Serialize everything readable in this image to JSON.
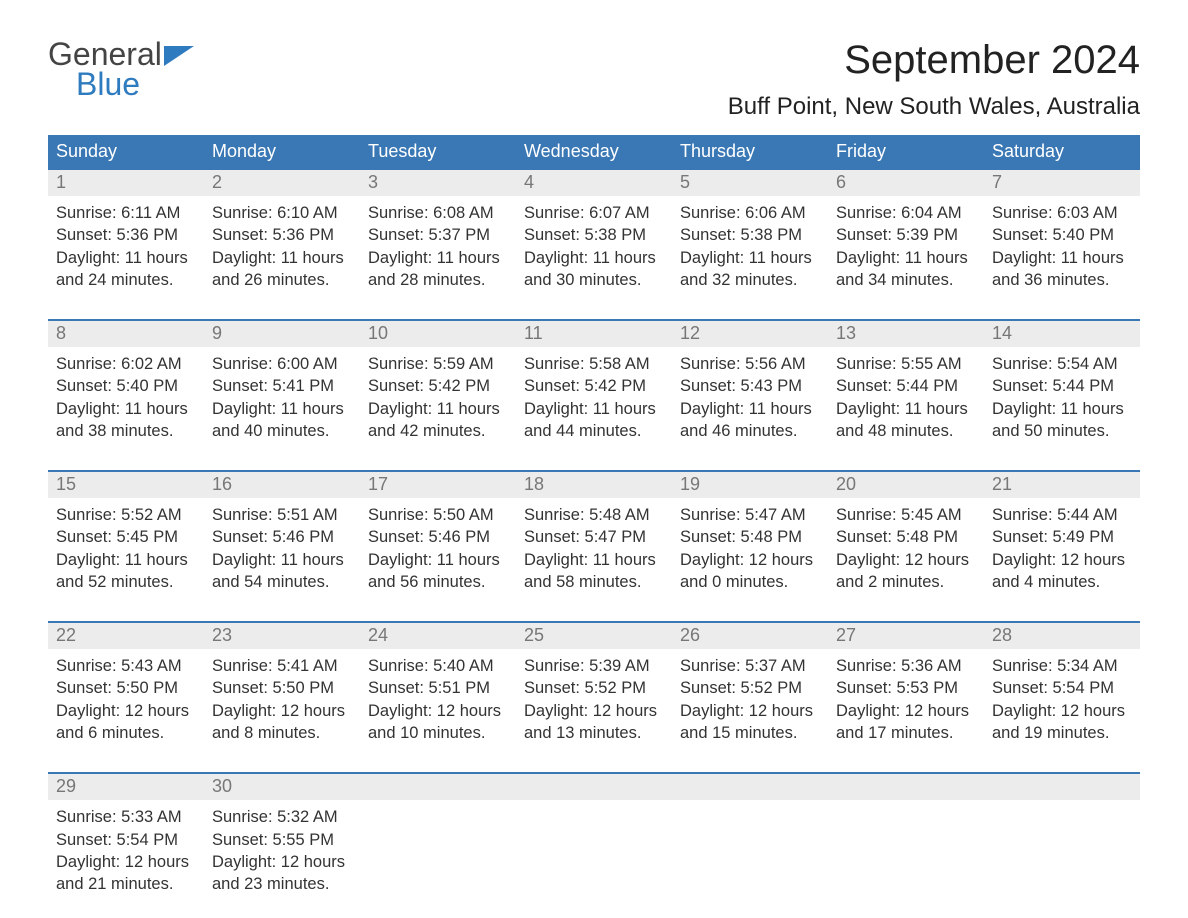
{
  "logo": {
    "line1": "General",
    "line2": "Blue"
  },
  "title": "September 2024",
  "location": "Buff Point, New South Wales, Australia",
  "colors": {
    "header_bg": "#3a78b5",
    "header_text": "#ffffff",
    "daynum_bg": "#ececec",
    "daynum_text": "#777777",
    "body_text": "#333333",
    "accent_blue": "#2f7bbf"
  },
  "weekdays": [
    "Sunday",
    "Monday",
    "Tuesday",
    "Wednesday",
    "Thursday",
    "Friday",
    "Saturday"
  ],
  "weeks": [
    [
      {
        "n": "1",
        "sunrise": "6:11 AM",
        "sunset": "5:36 PM",
        "daylight": "11 hours and 24 minutes."
      },
      {
        "n": "2",
        "sunrise": "6:10 AM",
        "sunset": "5:36 PM",
        "daylight": "11 hours and 26 minutes."
      },
      {
        "n": "3",
        "sunrise": "6:08 AM",
        "sunset": "5:37 PM",
        "daylight": "11 hours and 28 minutes."
      },
      {
        "n": "4",
        "sunrise": "6:07 AM",
        "sunset": "5:38 PM",
        "daylight": "11 hours and 30 minutes."
      },
      {
        "n": "5",
        "sunrise": "6:06 AM",
        "sunset": "5:38 PM",
        "daylight": "11 hours and 32 minutes."
      },
      {
        "n": "6",
        "sunrise": "6:04 AM",
        "sunset": "5:39 PM",
        "daylight": "11 hours and 34 minutes."
      },
      {
        "n": "7",
        "sunrise": "6:03 AM",
        "sunset": "5:40 PM",
        "daylight": "11 hours and 36 minutes."
      }
    ],
    [
      {
        "n": "8",
        "sunrise": "6:02 AM",
        "sunset": "5:40 PM",
        "daylight": "11 hours and 38 minutes."
      },
      {
        "n": "9",
        "sunrise": "6:00 AM",
        "sunset": "5:41 PM",
        "daylight": "11 hours and 40 minutes."
      },
      {
        "n": "10",
        "sunrise": "5:59 AM",
        "sunset": "5:42 PM",
        "daylight": "11 hours and 42 minutes."
      },
      {
        "n": "11",
        "sunrise": "5:58 AM",
        "sunset": "5:42 PM",
        "daylight": "11 hours and 44 minutes."
      },
      {
        "n": "12",
        "sunrise": "5:56 AM",
        "sunset": "5:43 PM",
        "daylight": "11 hours and 46 minutes."
      },
      {
        "n": "13",
        "sunrise": "5:55 AM",
        "sunset": "5:44 PM",
        "daylight": "11 hours and 48 minutes."
      },
      {
        "n": "14",
        "sunrise": "5:54 AM",
        "sunset": "5:44 PM",
        "daylight": "11 hours and 50 minutes."
      }
    ],
    [
      {
        "n": "15",
        "sunrise": "5:52 AM",
        "sunset": "5:45 PM",
        "daylight": "11 hours and 52 minutes."
      },
      {
        "n": "16",
        "sunrise": "5:51 AM",
        "sunset": "5:46 PM",
        "daylight": "11 hours and 54 minutes."
      },
      {
        "n": "17",
        "sunrise": "5:50 AM",
        "sunset": "5:46 PM",
        "daylight": "11 hours and 56 minutes."
      },
      {
        "n": "18",
        "sunrise": "5:48 AM",
        "sunset": "5:47 PM",
        "daylight": "11 hours and 58 minutes."
      },
      {
        "n": "19",
        "sunrise": "5:47 AM",
        "sunset": "5:48 PM",
        "daylight": "12 hours and 0 minutes."
      },
      {
        "n": "20",
        "sunrise": "5:45 AM",
        "sunset": "5:48 PM",
        "daylight": "12 hours and 2 minutes."
      },
      {
        "n": "21",
        "sunrise": "5:44 AM",
        "sunset": "5:49 PM",
        "daylight": "12 hours and 4 minutes."
      }
    ],
    [
      {
        "n": "22",
        "sunrise": "5:43 AM",
        "sunset": "5:50 PM",
        "daylight": "12 hours and 6 minutes."
      },
      {
        "n": "23",
        "sunrise": "5:41 AM",
        "sunset": "5:50 PM",
        "daylight": "12 hours and 8 minutes."
      },
      {
        "n": "24",
        "sunrise": "5:40 AM",
        "sunset": "5:51 PM",
        "daylight": "12 hours and 10 minutes."
      },
      {
        "n": "25",
        "sunrise": "5:39 AM",
        "sunset": "5:52 PM",
        "daylight": "12 hours and 13 minutes."
      },
      {
        "n": "26",
        "sunrise": "5:37 AM",
        "sunset": "5:52 PM",
        "daylight": "12 hours and 15 minutes."
      },
      {
        "n": "27",
        "sunrise": "5:36 AM",
        "sunset": "5:53 PM",
        "daylight": "12 hours and 17 minutes."
      },
      {
        "n": "28",
        "sunrise": "5:34 AM",
        "sunset": "5:54 PM",
        "daylight": "12 hours and 19 minutes."
      }
    ],
    [
      {
        "n": "29",
        "sunrise": "5:33 AM",
        "sunset": "5:54 PM",
        "daylight": "12 hours and 21 minutes."
      },
      {
        "n": "30",
        "sunrise": "5:32 AM",
        "sunset": "5:55 PM",
        "daylight": "12 hours and 23 minutes."
      },
      null,
      null,
      null,
      null,
      null
    ]
  ],
  "labels": {
    "sunrise_prefix": "Sunrise: ",
    "sunset_prefix": "Sunset: ",
    "daylight_prefix": "Daylight: "
  }
}
